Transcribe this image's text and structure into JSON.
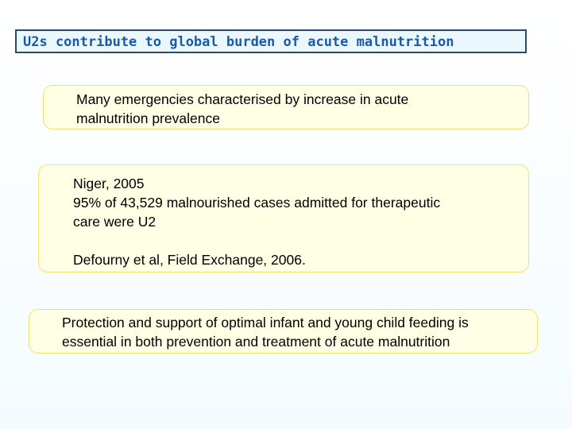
{
  "header": {
    "title": "U2s contribute to global burden of acute malnutrition"
  },
  "boxes": [
    {
      "lines": [
        "Many emergencies characterised by increase in acute",
        "malnutrition prevalence"
      ]
    },
    {
      "lines": [
        "Niger, 2005",
        "95% of 43,529 malnourished cases admitted for therapeutic",
        "care were U2"
      ],
      "citation": "Defourny et al, Field Exchange, 2006."
    },
    {
      "lines": [
        "Protection and support of optimal infant and young child feeding is",
        "essential in both prevention and treatment of acute malnutrition"
      ]
    }
  ]
}
